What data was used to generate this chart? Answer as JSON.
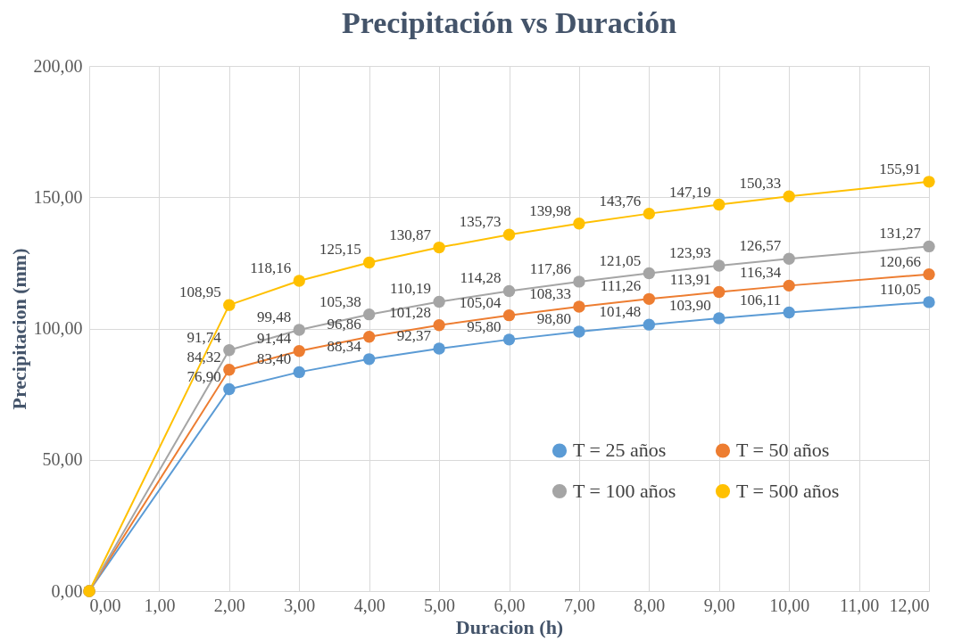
{
  "chart_data": {
    "type": "line",
    "title": "Precipitación vs Duración",
    "xlabel": "Duracion (h)",
    "ylabel": "Precipitacion (mm)",
    "x": [
      0,
      2,
      3,
      4,
      5,
      6,
      7,
      8,
      9,
      10,
      12
    ],
    "series": [
      {
        "name": "T = 25 años",
        "color": "#5b9bd5",
        "values": [
          0,
          76.9,
          83.4,
          88.34,
          92.37,
          95.8,
          98.8,
          101.48,
          103.9,
          106.11,
          110.05
        ],
        "value_labels": [
          null,
          "76,90",
          "83,40",
          "88,34",
          "92,37",
          "95,80",
          "98,80",
          "101,48",
          "103,90",
          "106,11",
          "110,05"
        ]
      },
      {
        "name": "T = 50 años",
        "color": "#ed7d31",
        "values": [
          0,
          84.32,
          91.44,
          96.86,
          101.28,
          105.04,
          108.33,
          111.26,
          113.91,
          116.34,
          120.66
        ],
        "value_labels": [
          null,
          "84,32",
          "91,44",
          "96,86",
          "101,28",
          "105,04",
          "108,33",
          "111,26",
          "113,91",
          "116,34",
          "120,66"
        ]
      },
      {
        "name": "T = 100 años",
        "color": "#a5a5a5",
        "values": [
          0,
          91.74,
          99.48,
          105.38,
          110.19,
          114.28,
          117.86,
          121.05,
          123.93,
          126.57,
          131.27
        ],
        "value_labels": [
          null,
          "91,74",
          "99,48",
          "105,38",
          "110,19",
          "114,28",
          "117,86",
          "121,05",
          "123,93",
          "126,57",
          "131,27"
        ]
      },
      {
        "name": "T = 500 años",
        "color": "#ffc000",
        "values": [
          0,
          108.95,
          118.16,
          125.15,
          130.87,
          135.73,
          139.98,
          143.76,
          147.19,
          150.33,
          155.91
        ],
        "value_labels": [
          null,
          "108,95",
          "118,16",
          "125,15",
          "130,87",
          "135,73",
          "139,98",
          "143,76",
          "147,19",
          "150,33",
          "155,91"
        ]
      }
    ],
    "xlim": [
      0,
      12
    ],
    "xticks": [
      {
        "value": 0,
        "label": "0,00"
      },
      {
        "value": 1,
        "label": "1,00"
      },
      {
        "value": 2,
        "label": "2,00"
      },
      {
        "value": 3,
        "label": "3,00"
      },
      {
        "value": 4,
        "label": "4,00"
      },
      {
        "value": 5,
        "label": "5,00"
      },
      {
        "value": 6,
        "label": "6,00"
      },
      {
        "value": 7,
        "label": "7,00"
      },
      {
        "value": 8,
        "label": "8,00"
      },
      {
        "value": 9,
        "label": "9,00"
      },
      {
        "value": 10,
        "label": "10,00"
      },
      {
        "value": 11,
        "label": "11,00"
      },
      {
        "value": 12,
        "label": "12,00"
      }
    ],
    "ylim": [
      0,
      200
    ],
    "yticks": [
      {
        "value": 0,
        "label": "0,00"
      },
      {
        "value": 50,
        "label": "50,00"
      },
      {
        "value": 100,
        "label": "100,00"
      },
      {
        "value": 150,
        "label": "150,00"
      },
      {
        "value": 200,
        "label": "200,00"
      }
    ],
    "grid": true,
    "legend": "bottom right",
    "marker": "circle",
    "line_style": "solid"
  }
}
